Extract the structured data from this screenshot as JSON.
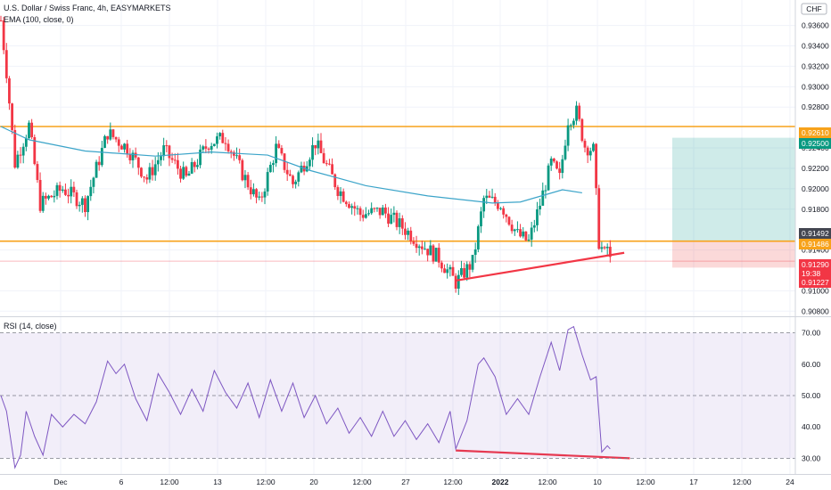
{
  "header": {
    "title": "U.S. Dollar / Swiss Franc, 4h, EASYMARKETS",
    "indicator": "EMA (100, close, 0)",
    "currency_badge": "CHF"
  },
  "rsi_panel": {
    "title": "RSI (14, close)"
  },
  "chart_data": [
    {
      "type": "candlestick",
      "title": "U.S. Dollar / Swiss Franc, 4h, EASYMARKETS",
      "y_axis_ticks": [
        "0.93600",
        "0.93400",
        "0.93200",
        "0.93000",
        "0.92800",
        "0.92400",
        "0.92200",
        "0.92000",
        "0.91800",
        "0.91400",
        "0.91000",
        "0.90800"
      ],
      "ylim": [
        0.9075,
        0.9385
      ],
      "x_axis_ticks": [
        "Dec",
        "6",
        "12:00",
        "13",
        "12:00",
        "20",
        "12:00",
        "27",
        "12:00",
        "2022",
        "12:00",
        "10",
        "12:00",
        "17",
        "12:00",
        "24"
      ],
      "price_tags": [
        {
          "label": "0.92610",
          "value": 0.9261,
          "color": "#f7a21b"
        },
        {
          "label": "0.92500",
          "value": 0.925,
          "color": "#089981"
        },
        {
          "label": "0.91492",
          "value": 0.91492,
          "color": "#434651"
        },
        {
          "label": "0.91486",
          "value": 0.91486,
          "color": "#f7a21b"
        },
        {
          "label": "0.91290",
          "value": 0.9129,
          "color": "#f23645"
        },
        {
          "label": "19:38",
          "value": 0.91195,
          "color": "#f23645"
        },
        {
          "label": "0.91227",
          "value": 0.91227,
          "color": "#f23645"
        }
      ],
      "horizontal_levels": [
        0.9261,
        0.91486
      ],
      "ema_period": 100,
      "ema_anchors": [
        {
          "x_index": 0,
          "value": 0.9261
        },
        {
          "x_index": 10,
          "value": 0.9248
        },
        {
          "x_index": 30,
          "value": 0.9237
        },
        {
          "x_index": 55,
          "value": 0.9232
        },
        {
          "x_index": 75,
          "value": 0.9236
        },
        {
          "x_index": 95,
          "value": 0.9233
        },
        {
          "x_index": 110,
          "value": 0.9218
        },
        {
          "x_index": 130,
          "value": 0.9203
        },
        {
          "x_index": 152,
          "value": 0.9193
        },
        {
          "x_index": 175,
          "value": 0.9186
        },
        {
          "x_index": 185,
          "value": 0.9187
        },
        {
          "x_index": 200,
          "value": 0.9199
        },
        {
          "x_index": 207,
          "value": 0.9196
        }
      ],
      "price_path": [
        {
          "x_index": 0,
          "value": 0.9365
        },
        {
          "x_index": 2,
          "value": 0.9315
        },
        {
          "x_index": 5,
          "value": 0.9225
        },
        {
          "x_index": 10,
          "value": 0.9262
        },
        {
          "x_index": 14,
          "value": 0.9185
        },
        {
          "x_index": 22,
          "value": 0.92
        },
        {
          "x_index": 30,
          "value": 0.9185
        },
        {
          "x_index": 38,
          "value": 0.9255
        },
        {
          "x_index": 45,
          "value": 0.924
        },
        {
          "x_index": 52,
          "value": 0.921
        },
        {
          "x_index": 58,
          "value": 0.9238
        },
        {
          "x_index": 66,
          "value": 0.921
        },
        {
          "x_index": 74,
          "value": 0.9245
        },
        {
          "x_index": 80,
          "value": 0.925
        },
        {
          "x_index": 86,
          "value": 0.9215
        },
        {
          "x_index": 92,
          "value": 0.9185
        },
        {
          "x_index": 98,
          "value": 0.924
        },
        {
          "x_index": 104,
          "value": 0.9205
        },
        {
          "x_index": 112,
          "value": 0.9245
        },
        {
          "x_index": 120,
          "value": 0.92
        },
        {
          "x_index": 128,
          "value": 0.9175
        },
        {
          "x_index": 136,
          "value": 0.9178
        },
        {
          "x_index": 144,
          "value": 0.916
        },
        {
          "x_index": 150,
          "value": 0.9145
        },
        {
          "x_index": 156,
          "value": 0.9132
        },
        {
          "x_index": 162,
          "value": 0.9108
        },
        {
          "x_index": 168,
          "value": 0.9128
        },
        {
          "x_index": 172,
          "value": 0.919
        },
        {
          "x_index": 178,
          "value": 0.9185
        },
        {
          "x_index": 184,
          "value": 0.9155
        },
        {
          "x_index": 188,
          "value": 0.9148
        },
        {
          "x_index": 192,
          "value": 0.9185
        },
        {
          "x_index": 196,
          "value": 0.9225
        },
        {
          "x_index": 199,
          "value": 0.921
        },
        {
          "x_index": 202,
          "value": 0.9268
        },
        {
          "x_index": 205,
          "value": 0.9275
        },
        {
          "x_index": 208,
          "value": 0.9242
        },
        {
          "x_index": 211,
          "value": 0.9238
        },
        {
          "x_index": 213,
          "value": 0.9148
        },
        {
          "x_index": 215,
          "value": 0.9135
        },
        {
          "x_index": 216,
          "value": 0.9143
        },
        {
          "x_index": 217,
          "value": 0.9129
        }
      ],
      "trendline": {
        "from": {
          "x_index": 162,
          "value": 0.911
        },
        "to": {
          "x_index": 222,
          "value": 0.91372
        },
        "color": "#f23645"
      },
      "position": {
        "entry": 0.91486,
        "target": 0.925,
        "stop": 0.91227,
        "profit_color": "#26a69a",
        "loss_color": "#ef5350"
      }
    },
    {
      "type": "line",
      "title": "RSI (14, close)",
      "y_axis_ticks": [
        "70.00",
        "60.00",
        "50.00",
        "40.00",
        "30.00"
      ],
      "ylim": [
        25,
        75
      ],
      "band": [
        30,
        70
      ],
      "midline": 50,
      "color": "#7e57c2",
      "rsi_path": [
        {
          "x_index": 0,
          "value": 50
        },
        {
          "x_index": 2,
          "value": 45
        },
        {
          "x_index": 4,
          "value": 33
        },
        {
          "x_index": 5,
          "value": 27
        },
        {
          "x_index": 7,
          "value": 31
        },
        {
          "x_index": 9,
          "value": 45
        },
        {
          "x_index": 12,
          "value": 37
        },
        {
          "x_index": 15,
          "value": 31
        },
        {
          "x_index": 18,
          "value": 44
        },
        {
          "x_index": 22,
          "value": 40
        },
        {
          "x_index": 26,
          "value": 44
        },
        {
          "x_index": 30,
          "value": 41
        },
        {
          "x_index": 34,
          "value": 48
        },
        {
          "x_index": 38,
          "value": 61
        },
        {
          "x_index": 41,
          "value": 57
        },
        {
          "x_index": 44,
          "value": 60
        },
        {
          "x_index": 48,
          "value": 49
        },
        {
          "x_index": 52,
          "value": 42
        },
        {
          "x_index": 56,
          "value": 57
        },
        {
          "x_index": 60,
          "value": 51
        },
        {
          "x_index": 64,
          "value": 44
        },
        {
          "x_index": 68,
          "value": 52
        },
        {
          "x_index": 72,
          "value": 45
        },
        {
          "x_index": 76,
          "value": 58
        },
        {
          "x_index": 80,
          "value": 51
        },
        {
          "x_index": 84,
          "value": 46
        },
        {
          "x_index": 88,
          "value": 54
        },
        {
          "x_index": 92,
          "value": 43
        },
        {
          "x_index": 96,
          "value": 55
        },
        {
          "x_index": 100,
          "value": 45
        },
        {
          "x_index": 104,
          "value": 54
        },
        {
          "x_index": 108,
          "value": 43
        },
        {
          "x_index": 112,
          "value": 50
        },
        {
          "x_index": 116,
          "value": 41
        },
        {
          "x_index": 120,
          "value": 46
        },
        {
          "x_index": 124,
          "value": 38
        },
        {
          "x_index": 128,
          "value": 43
        },
        {
          "x_index": 132,
          "value": 37
        },
        {
          "x_index": 136,
          "value": 45
        },
        {
          "x_index": 140,
          "value": 37
        },
        {
          "x_index": 144,
          "value": 42
        },
        {
          "x_index": 148,
          "value": 36
        },
        {
          "x_index": 152,
          "value": 41
        },
        {
          "x_index": 156,
          "value": 35
        },
        {
          "x_index": 160,
          "value": 45
        },
        {
          "x_index": 162,
          "value": 33
        },
        {
          "x_index": 166,
          "value": 42
        },
        {
          "x_index": 170,
          "value": 60
        },
        {
          "x_index": 172,
          "value": 62
        },
        {
          "x_index": 176,
          "value": 56
        },
        {
          "x_index": 180,
          "value": 44
        },
        {
          "x_index": 184,
          "value": 49
        },
        {
          "x_index": 188,
          "value": 44
        },
        {
          "x_index": 192,
          "value": 56
        },
        {
          "x_index": 196,
          "value": 67
        },
        {
          "x_index": 199,
          "value": 58
        },
        {
          "x_index": 202,
          "value": 71
        },
        {
          "x_index": 204,
          "value": 72
        },
        {
          "x_index": 207,
          "value": 63
        },
        {
          "x_index": 210,
          "value": 55
        },
        {
          "x_index": 212,
          "value": 56
        },
        {
          "x_index": 214,
          "value": 32
        },
        {
          "x_index": 216,
          "value": 34
        },
        {
          "x_index": 217,
          "value": 33
        }
      ],
      "trendline": {
        "from": {
          "x_index": 162,
          "value": 32.5
        },
        "to": {
          "x_index": 224,
          "value": 30.0
        },
        "color": "#f23645"
      }
    }
  ]
}
